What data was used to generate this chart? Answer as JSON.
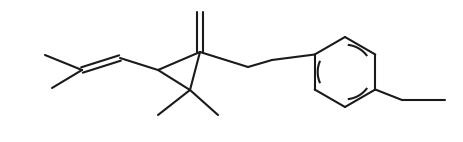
{
  "bg_color": "#ffffff",
  "line_color": "#1a1a1a",
  "line_width": 1.5,
  "fig_width": 4.64,
  "fig_height": 1.42,
  "dpi": 100
}
